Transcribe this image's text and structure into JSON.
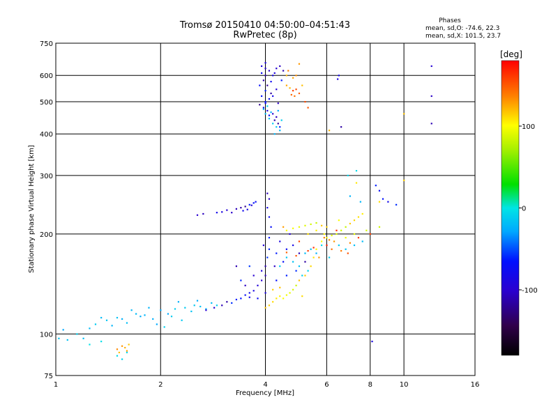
{
  "chart_data": {
    "type": "scatter",
    "title_line1": "Tromsø 20150410 04:50:00–04:51:43",
    "title_line2": "RwPretec (8p)",
    "xlabel": "Frequency [MHz]",
    "ylabel": "Stationary phase Virtual Height [km]",
    "x_scale": "log",
    "y_scale": "log",
    "xlim": [
      1,
      16
    ],
    "ylim": [
      75,
      750
    ],
    "x_ticks": [
      1,
      2,
      4,
      6,
      8,
      10,
      16
    ],
    "x_tick_labels": [
      "1",
      "2",
      "4",
      "6",
      "8",
      "10",
      "16"
    ],
    "y_ticks": [
      75,
      100,
      200,
      300,
      400,
      500,
      600,
      750
    ],
    "y_tick_labels": [
      "75",
      "100",
      "200",
      "300",
      "400",
      "500",
      "600",
      "750"
    ],
    "grid": true,
    "stats": {
      "heading": "Phases",
      "line_o": "mean, sd,O: -74.6, 22.3",
      "line_x": "mean, sd,X: 101.5, 23.7"
    },
    "colorbar": {
      "label": "[deg]",
      "min": -180,
      "max": 180,
      "ticks": [
        100,
        0,
        -100
      ],
      "tick_labels": [
        "100",
        "0",
        "-100"
      ]
    },
    "clusters": [
      {
        "name": "low-frequency trace",
        "color_value": -40,
        "points": [
          [
            1.05,
            103
          ],
          [
            1.15,
            100
          ],
          [
            1.3,
            107
          ],
          [
            1.4,
            110
          ],
          [
            1.5,
            112
          ],
          [
            1.6,
            108
          ],
          [
            1.7,
            115
          ],
          [
            1.8,
            114
          ],
          [
            1.9,
            111
          ],
          [
            2.0,
            118
          ],
          [
            2.1,
            115
          ],
          [
            2.2,
            119
          ],
          [
            2.35,
            120
          ],
          [
            2.5,
            122
          ],
          [
            2.6,
            121
          ],
          [
            2.8,
            124
          ],
          [
            1.25,
            104
          ],
          [
            1.45,
            106
          ],
          [
            1.55,
            111
          ],
          [
            1.75,
            113
          ],
          [
            1.95,
            107
          ],
          [
            2.05,
            105
          ],
          [
            2.15,
            113
          ],
          [
            2.3,
            110
          ],
          [
            2.45,
            117
          ],
          [
            2.7,
            119
          ],
          [
            1.35,
            112
          ],
          [
            1.65,
            118
          ],
          [
            1.85,
            120
          ],
          [
            2.25,
            125
          ],
          [
            2.55,
            126
          ],
          [
            2.9,
            122
          ]
        ]
      },
      {
        "name": "descending trace",
        "color_value": -110,
        "points": [
          [
            2.7,
            118
          ],
          [
            2.85,
            120
          ],
          [
            3.0,
            122
          ],
          [
            3.1,
            125
          ],
          [
            3.2,
            124
          ],
          [
            3.3,
            127
          ],
          [
            3.4,
            128
          ],
          [
            3.5,
            131
          ],
          [
            3.6,
            133
          ],
          [
            3.7,
            135
          ],
          [
            3.8,
            140
          ],
          [
            3.9,
            145
          ],
          [
            4.0,
            150
          ],
          [
            4.0,
            160
          ],
          [
            4.05,
            170
          ],
          [
            4.1,
            180
          ],
          [
            4.1,
            195
          ],
          [
            4.15,
            210
          ],
          [
            4.1,
            225
          ],
          [
            4.05,
            240
          ],
          [
            3.9,
            155
          ],
          [
            3.7,
            150
          ],
          [
            3.5,
            140
          ],
          [
            3.3,
            160
          ],
          [
            3.6,
            160
          ],
          [
            3.4,
            145
          ],
          [
            4.3,
            175
          ],
          [
            4.5,
            165
          ],
          [
            4.6,
            180
          ],
          [
            4.8,
            185
          ],
          [
            4.4,
            190
          ],
          [
            4.7,
            200
          ],
          [
            4.25,
            160
          ],
          [
            5.0,
            175
          ],
          [
            5.2,
            165
          ],
          [
            4.9,
            155
          ],
          [
            4.6,
            150
          ],
          [
            4.3,
            145
          ],
          [
            3.8,
            128
          ],
          [
            3.6,
            129
          ],
          [
            4.0,
            133
          ],
          [
            3.95,
            185
          ],
          [
            4.1,
            255
          ],
          [
            4.05,
            265
          ]
        ]
      },
      {
        "name": "upper-left dashes",
        "color_value": -115,
        "points": [
          [
            2.9,
            232
          ],
          [
            3.0,
            233
          ],
          [
            3.1,
            236
          ],
          [
            3.2,
            232
          ],
          [
            3.3,
            238
          ],
          [
            3.4,
            240
          ],
          [
            3.5,
            242
          ],
          [
            3.6,
            245
          ],
          [
            3.7,
            248
          ],
          [
            3.75,
            250
          ],
          [
            3.45,
            235
          ],
          [
            3.55,
            237
          ],
          [
            3.65,
            244
          ],
          [
            2.55,
            228
          ],
          [
            2.65,
            230
          ]
        ]
      },
      {
        "name": "upper F2 trace",
        "color_value": 100,
        "points": [
          [
            4.0,
            120
          ],
          [
            4.1,
            122
          ],
          [
            4.2,
            125
          ],
          [
            4.3,
            128
          ],
          [
            4.4,
            130
          ],
          [
            4.5,
            128
          ],
          [
            4.6,
            131
          ],
          [
            4.7,
            133
          ],
          [
            4.8,
            136
          ],
          [
            4.9,
            140
          ],
          [
            5.0,
            145
          ],
          [
            5.2,
            150
          ],
          [
            5.4,
            160
          ],
          [
            5.5,
            170
          ],
          [
            5.6,
            180
          ],
          [
            5.8,
            190
          ],
          [
            6.0,
            195
          ],
          [
            6.2,
            198
          ],
          [
            6.4,
            200
          ],
          [
            6.6,
            205
          ],
          [
            6.8,
            210
          ],
          [
            7.0,
            215
          ],
          [
            7.2,
            220
          ],
          [
            7.4,
            225
          ],
          [
            7.6,
            230
          ],
          [
            4.6,
            205
          ],
          [
            4.8,
            208
          ],
          [
            5.0,
            210
          ],
          [
            5.2,
            212
          ],
          [
            5.4,
            214
          ],
          [
            5.6,
            216
          ],
          [
            5.8,
            212
          ],
          [
            6.0,
            210
          ],
          [
            5.3,
            200
          ],
          [
            5.6,
            205
          ],
          [
            5.9,
            200
          ],
          [
            6.5,
            220
          ],
          [
            6.8,
            195
          ],
          [
            7.2,
            200
          ],
          [
            7.8,
            205
          ],
          [
            8.5,
            210
          ],
          [
            4.4,
            138
          ],
          [
            4.2,
            136
          ],
          [
            5.1,
            130
          ]
        ]
      },
      {
        "name": "orange-red scatter",
        "color_value": 150,
        "points": [
          [
            5.9,
            195
          ],
          [
            6.1,
            192
          ],
          [
            6.3,
            190
          ],
          [
            6.0,
            185
          ],
          [
            5.5,
            182
          ],
          [
            5.3,
            178
          ],
          [
            5.0,
            190
          ],
          [
            4.9,
            172
          ],
          [
            4.6,
            176
          ],
          [
            6.2,
            180
          ],
          [
            6.6,
            178
          ],
          [
            7.0,
            188
          ],
          [
            5.7,
            170
          ],
          [
            4.5,
            210
          ],
          [
            6.4,
            205
          ],
          [
            7.4,
            195
          ],
          [
            8.0,
            200
          ],
          [
            6.9,
            175
          ]
        ]
      },
      {
        "name": "cyan mid scatter",
        "color_value": -30,
        "points": [
          [
            4.4,
            160
          ],
          [
            4.6,
            170
          ],
          [
            4.8,
            165
          ],
          [
            5.0,
            160
          ],
          [
            5.2,
            175
          ],
          [
            5.4,
            180
          ],
          [
            5.6,
            175
          ],
          [
            5.8,
            185
          ],
          [
            5.3,
            155
          ],
          [
            5.1,
            150
          ],
          [
            6.1,
            170
          ],
          [
            6.5,
            185
          ],
          [
            6.8,
            180
          ],
          [
            7.2,
            185
          ],
          [
            7.6,
            190
          ],
          [
            7.5,
            250
          ],
          [
            7.0,
            260
          ],
          [
            7.3,
            310
          ],
          [
            6.9,
            300
          ]
        ]
      },
      {
        "name": "E-region patch",
        "color_value": 120,
        "points": [
          [
            1.5,
            90
          ],
          [
            1.55,
            92
          ],
          [
            1.6,
            89
          ],
          [
            1.58,
            91
          ],
          [
            1.52,
            88
          ],
          [
            1.62,
            93
          ]
        ]
      },
      {
        "name": "low cyan patch",
        "color_value": -20,
        "points": [
          [
            1.02,
            97
          ],
          [
            1.08,
            96
          ],
          [
            1.2,
            97
          ],
          [
            1.25,
            93
          ],
          [
            1.35,
            95
          ],
          [
            1.5,
            86
          ],
          [
            1.6,
            88
          ],
          [
            1.55,
            84
          ]
        ]
      },
      {
        "name": "high blue column",
        "color_value": -115,
        "points": [
          [
            3.9,
            640
          ],
          [
            4.0,
            630
          ],
          [
            4.1,
            620
          ],
          [
            4.0,
            600
          ],
          [
            3.95,
            580
          ],
          [
            4.05,
            560
          ],
          [
            4.0,
            540
          ],
          [
            3.9,
            520
          ],
          [
            4.1,
            510
          ],
          [
            4.0,
            495
          ],
          [
            3.95,
            480
          ],
          [
            4.05,
            470
          ],
          [
            4.2,
            460
          ],
          [
            4.3,
            450
          ],
          [
            4.25,
            440
          ],
          [
            4.35,
            430
          ],
          [
            4.4,
            420
          ],
          [
            4.0,
            500
          ],
          [
            3.85,
            560
          ],
          [
            4.15,
            575
          ],
          [
            4.2,
            600
          ],
          [
            4.25,
            610
          ],
          [
            4.3,
            630
          ],
          [
            4.4,
            640
          ],
          [
            4.5,
            620
          ],
          [
            4.15,
            530
          ],
          [
            3.85,
            490
          ],
          [
            4.45,
            580
          ],
          [
            4.1,
            455
          ],
          [
            3.9,
            610
          ],
          [
            4.2,
            520
          ],
          [
            4.0,
            655
          ],
          [
            4.3,
            545
          ],
          [
            4.35,
            495
          ]
        ]
      },
      {
        "name": "high cyan column",
        "color_value": -40,
        "points": [
          [
            4.2,
            430
          ],
          [
            4.3,
            420
          ],
          [
            4.1,
            445
          ],
          [
            4.0,
            460
          ],
          [
            3.95,
            475
          ],
          [
            4.4,
            410
          ],
          [
            4.25,
            400
          ],
          [
            4.15,
            465
          ],
          [
            4.35,
            470
          ],
          [
            4.05,
            485
          ],
          [
            4.45,
            440
          ]
        ]
      },
      {
        "name": "high orange cluster",
        "color_value": 140,
        "points": [
          [
            4.6,
            560
          ],
          [
            4.7,
            550
          ],
          [
            4.8,
            540
          ],
          [
            4.9,
            545
          ],
          [
            5.0,
            530
          ],
          [
            4.75,
            525
          ],
          [
            4.85,
            520
          ],
          [
            4.65,
            620
          ],
          [
            4.9,
            600
          ],
          [
            5.0,
            650
          ],
          [
            4.8,
            590
          ],
          [
            4.6,
            600
          ],
          [
            5.1,
            560
          ],
          [
            5.2,
            500
          ],
          [
            5.3,
            480
          ]
        ]
      },
      {
        "name": "sparse high points",
        "color_value": -110,
        "points": [
          [
            6.5,
            600
          ],
          [
            6.45,
            585
          ],
          [
            12.0,
            640
          ],
          [
            12.0,
            520
          ],
          [
            12.0,
            430
          ],
          [
            6.6,
            420
          ],
          [
            9.5,
            245
          ],
          [
            8.3,
            280
          ],
          [
            8.7,
            255
          ],
          [
            8.5,
            270
          ],
          [
            9.0,
            250
          ],
          [
            8.1,
            95
          ]
        ]
      },
      {
        "name": "pale yellow outliers",
        "color_value": 110,
        "points": [
          [
            6.1,
            410
          ],
          [
            10.0,
            460
          ],
          [
            10.0,
            290
          ],
          [
            8.5,
            250
          ],
          [
            7.3,
            285
          ]
        ]
      }
    ]
  }
}
